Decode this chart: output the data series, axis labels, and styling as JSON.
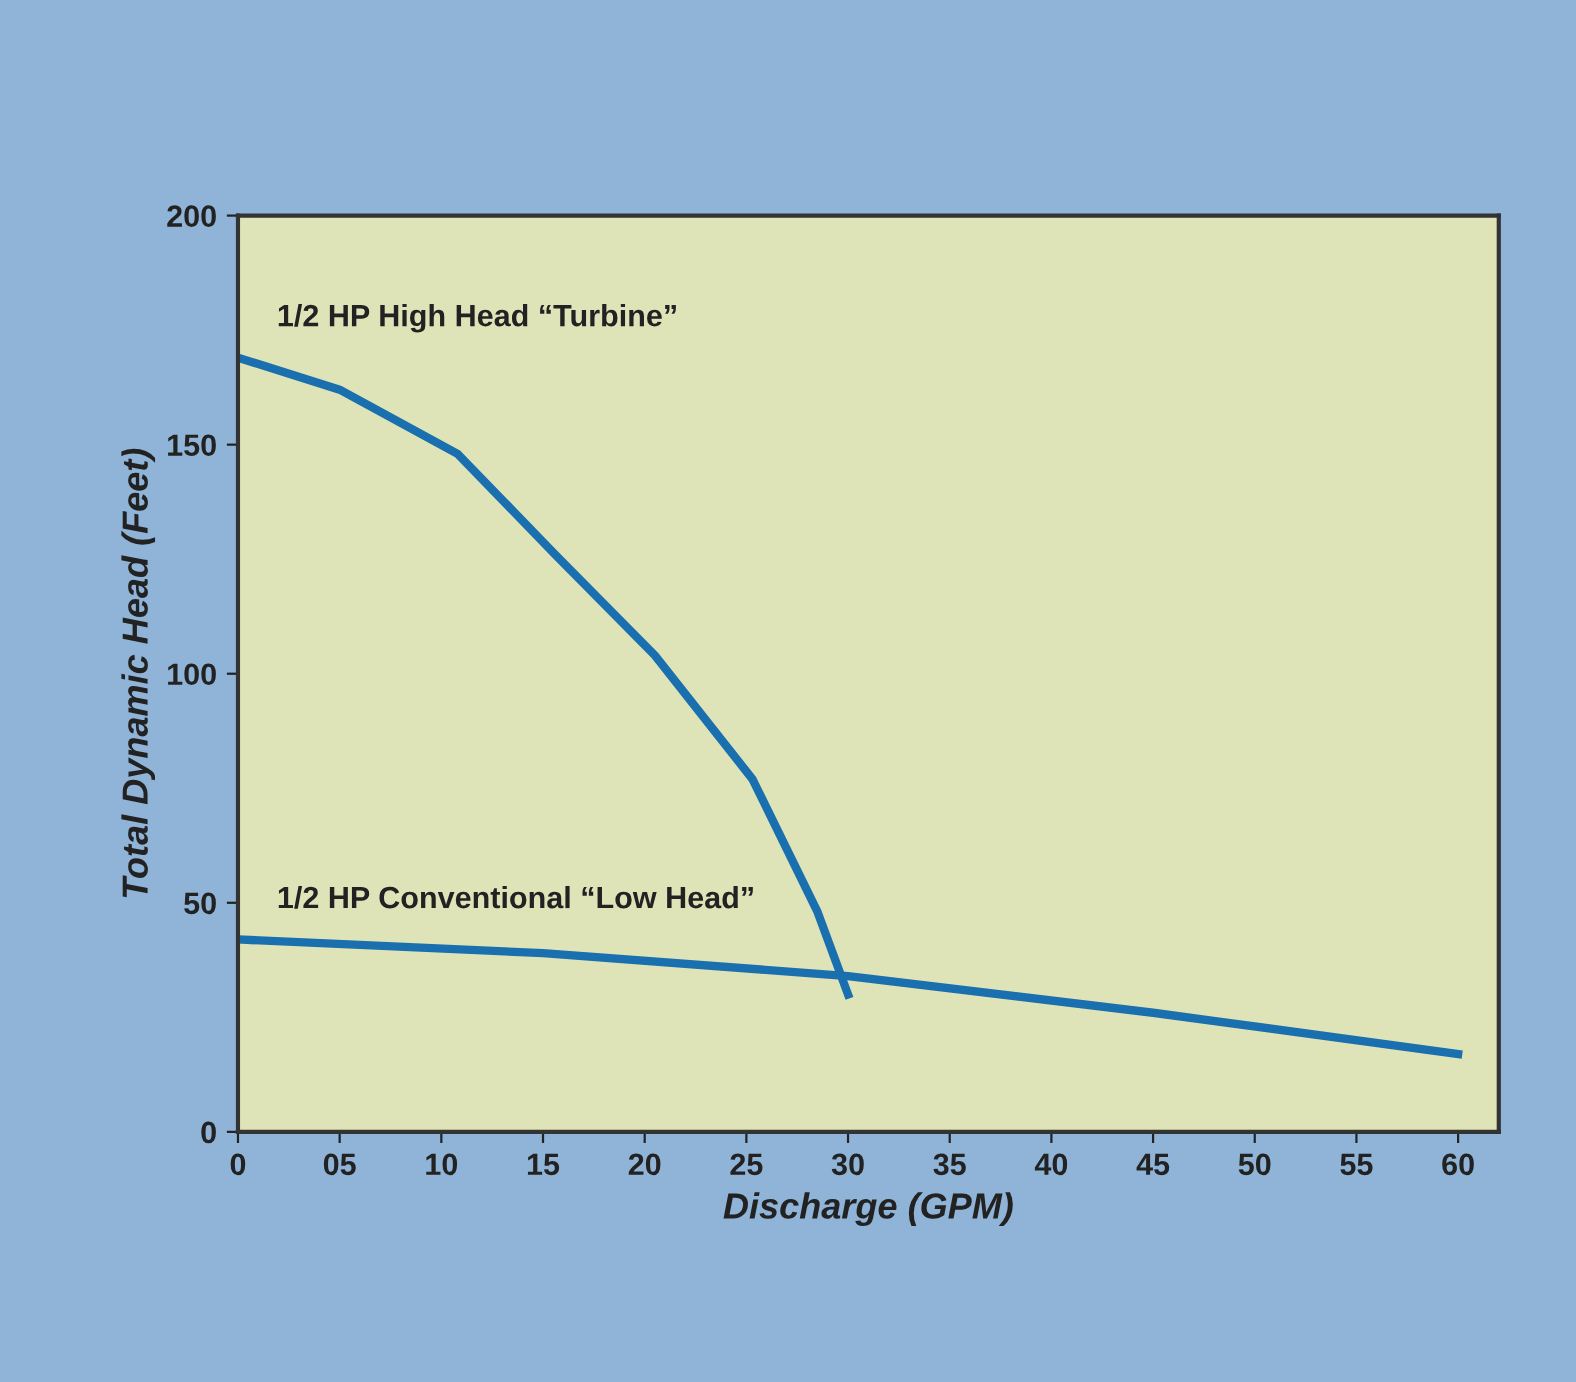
{
  "chart_data": {
    "type": "line",
    "xlabel": "Discharge (GPM)",
    "ylabel": "Total Dynamic Head (Feet)",
    "xlim": [
      0,
      62
    ],
    "ylim": [
      0,
      200
    ],
    "xticks": [
      0,
      {
        "value": 5,
        "label": "05"
      },
      10,
      15,
      20,
      25,
      30,
      35,
      40,
      45,
      50,
      55,
      60
    ],
    "yticks": [
      0,
      50,
      100,
      150,
      200
    ],
    "grid": false,
    "marker": "none",
    "line_style": "solid",
    "series": [
      {
        "name": "1/2 HP High Head “Turbine”",
        "color": "#1a6fae",
        "x": [
          0,
          5,
          10.8,
          15.6,
          20.5,
          25.3,
          28.5,
          30
        ],
        "values": [
          169,
          162,
          148,
          126,
          104,
          77,
          48,
          30
        ]
      },
      {
        "name": "1/2 HP Conventional “Low Head”",
        "color": "#1a6fae",
        "x": [
          0,
          15,
          30,
          45,
          60
        ],
        "values": [
          42,
          39,
          34,
          26,
          17
        ]
      }
    ]
  }
}
